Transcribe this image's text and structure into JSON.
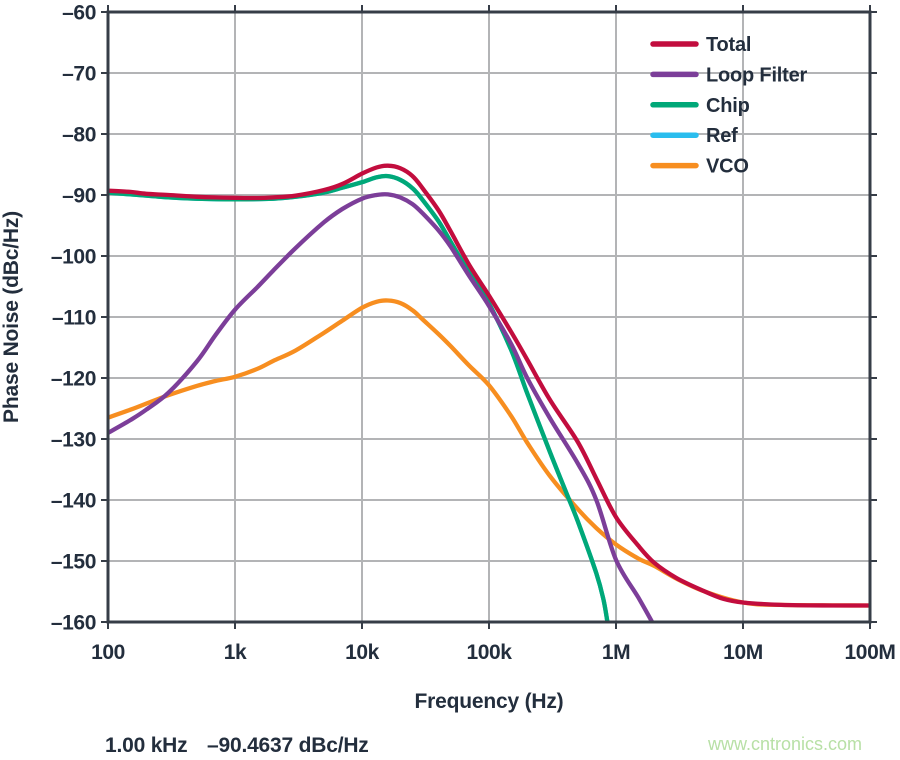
{
  "watermark": {
    "text": "www.cntronics.com",
    "color": "#b8e0a6"
  },
  "chart_data": {
    "type": "line",
    "title": "",
    "xlabel": "Frequency (Hz)",
    "ylabel": "Phase Noise (dBc/Hz)",
    "x_scale": "log",
    "xlim": [
      100,
      100000000
    ],
    "ylim": [
      -160,
      -60
    ],
    "grid": true,
    "x_ticks": [
      100,
      1000,
      10000,
      100000,
      1000000,
      10000000,
      100000000
    ],
    "x_tick_labels": [
      "100",
      "1k",
      "10k",
      "100k",
      "1M",
      "10M",
      "100M"
    ],
    "y_ticks": [
      -60,
      -70,
      -80,
      -90,
      -100,
      -110,
      -120,
      -130,
      -140,
      -150,
      -160
    ],
    "y_tick_labels": [
      "–60",
      "–70",
      "–80",
      "–90",
      "–100",
      "–110",
      "–120",
      "–130",
      "–140",
      "–150",
      "–160"
    ],
    "legend_position": "top-right",
    "marker_readout": {
      "frequency": "1.00 kHz",
      "value": "–90.4637 dBc/Hz"
    },
    "colors": {
      "grid": "#b3b4b6",
      "axis": "#363d47",
      "text": "#232e3d"
    },
    "series": [
      {
        "name": "Total",
        "color": "#c20d3e",
        "points": [
          [
            100,
            -89.3
          ],
          [
            150,
            -89.5
          ],
          [
            200,
            -89.8
          ],
          [
            300,
            -90.0
          ],
          [
            500,
            -90.3
          ],
          [
            700,
            -90.4
          ],
          [
            1000,
            -90.46
          ],
          [
            1500,
            -90.5
          ],
          [
            2000,
            -90.4
          ],
          [
            3000,
            -90.1
          ],
          [
            5000,
            -89.2
          ],
          [
            7000,
            -88.2
          ],
          [
            10000,
            -86.5
          ],
          [
            13000,
            -85.5
          ],
          [
            16000,
            -85.2
          ],
          [
            20000,
            -85.6
          ],
          [
            25000,
            -86.9
          ],
          [
            30000,
            -88.9
          ],
          [
            40000,
            -92.5
          ],
          [
            50000,
            -96.0
          ],
          [
            70000,
            -101.5
          ],
          [
            100000,
            -106.5
          ],
          [
            150000,
            -112.5
          ],
          [
            200000,
            -117.0
          ],
          [
            300000,
            -123.5
          ],
          [
            500000,
            -130.5
          ],
          [
            700000,
            -136.5
          ],
          [
            1000000,
            -142.8
          ],
          [
            1500000,
            -147.5
          ],
          [
            2000000,
            -150.3
          ],
          [
            3000000,
            -152.8
          ],
          [
            5000000,
            -155.0
          ],
          [
            7000000,
            -156.2
          ],
          [
            10000000,
            -156.8
          ],
          [
            20000000,
            -157.2
          ],
          [
            50000000,
            -157.3
          ],
          [
            100000000,
            -157.3
          ]
        ]
      },
      {
        "name": "Loop Filter",
        "color": "#7c3e99",
        "points": [
          [
            100,
            -129.0
          ],
          [
            150,
            -126.9
          ],
          [
            200,
            -125.2
          ],
          [
            300,
            -122.4
          ],
          [
            500,
            -117.3
          ],
          [
            700,
            -113.0
          ],
          [
            1000,
            -108.8
          ],
          [
            1500,
            -105.1
          ],
          [
            2000,
            -102.4
          ],
          [
            3000,
            -98.7
          ],
          [
            5000,
            -94.5
          ],
          [
            7000,
            -92.3
          ],
          [
            10000,
            -90.6
          ],
          [
            13000,
            -90.0
          ],
          [
            16000,
            -89.9
          ],
          [
            20000,
            -90.4
          ],
          [
            25000,
            -91.5
          ],
          [
            30000,
            -93.0
          ],
          [
            40000,
            -95.8
          ],
          [
            50000,
            -98.5
          ],
          [
            70000,
            -103.3
          ],
          [
            100000,
            -108.2
          ],
          [
            150000,
            -114.5
          ],
          [
            200000,
            -120.0
          ],
          [
            300000,
            -126.5
          ],
          [
            500000,
            -134.0
          ],
          [
            700000,
            -140.0
          ],
          [
            1000000,
            -149.8
          ],
          [
            1500000,
            -156.0
          ],
          [
            2000000,
            -160.6
          ]
        ]
      },
      {
        "name": "Chip",
        "color": "#00a878",
        "points": [
          [
            100,
            -89.6
          ],
          [
            200,
            -90.1
          ],
          [
            300,
            -90.4
          ],
          [
            500,
            -90.6
          ],
          [
            1000,
            -90.7
          ],
          [
            2000,
            -90.6
          ],
          [
            3000,
            -90.3
          ],
          [
            5000,
            -89.6
          ],
          [
            7000,
            -88.8
          ],
          [
            10000,
            -87.9
          ],
          [
            13000,
            -87.1
          ],
          [
            16000,
            -86.9
          ],
          [
            20000,
            -87.5
          ],
          [
            25000,
            -88.9
          ],
          [
            30000,
            -90.8
          ],
          [
            40000,
            -94.3
          ],
          [
            50000,
            -97.7
          ],
          [
            70000,
            -102.8
          ],
          [
            100000,
            -107.8
          ],
          [
            150000,
            -115.5
          ],
          [
            200000,
            -122.5
          ],
          [
            300000,
            -132.0
          ],
          [
            400000,
            -138.5
          ],
          [
            500000,
            -143.5
          ],
          [
            700000,
            -152.0
          ],
          [
            800000,
            -156.5
          ],
          [
            865000,
            -160.6
          ]
        ]
      },
      {
        "name": "Ref",
        "color": "#2abdee",
        "note": "not visually distinguishable in plot; lies hidden beneath the Chip curve",
        "points": [
          [
            100,
            -89.6
          ],
          [
            200,
            -90.1
          ],
          [
            300,
            -90.4
          ],
          [
            500,
            -90.6
          ],
          [
            1000,
            -90.7
          ],
          [
            2000,
            -90.6
          ],
          [
            3000,
            -90.3
          ],
          [
            5000,
            -89.6
          ],
          [
            7000,
            -88.8
          ],
          [
            10000,
            -87.9
          ],
          [
            13000,
            -87.1
          ],
          [
            16000,
            -86.9
          ],
          [
            20000,
            -87.5
          ],
          [
            25000,
            -88.9
          ],
          [
            30000,
            -90.8
          ],
          [
            40000,
            -94.3
          ],
          [
            50000,
            -97.7
          ],
          [
            70000,
            -102.8
          ],
          [
            100000,
            -107.8
          ],
          [
            150000,
            -115.5
          ],
          [
            200000,
            -122.5
          ],
          [
            300000,
            -132.0
          ],
          [
            400000,
            -138.5
          ],
          [
            500000,
            -143.5
          ],
          [
            700000,
            -152.0
          ],
          [
            800000,
            -156.5
          ],
          [
            865000,
            -160.6
          ]
        ]
      },
      {
        "name": "VCO",
        "color": "#f78e20",
        "points": [
          [
            100,
            -126.5
          ],
          [
            150,
            -125.2
          ],
          [
            200,
            -124.2
          ],
          [
            300,
            -122.8
          ],
          [
            500,
            -121.3
          ],
          [
            700,
            -120.5
          ],
          [
            1000,
            -119.8
          ],
          [
            1500,
            -118.5
          ],
          [
            2000,
            -117.2
          ],
          [
            3000,
            -115.5
          ],
          [
            5000,
            -112.6
          ],
          [
            7000,
            -110.6
          ],
          [
            10000,
            -108.5
          ],
          [
            13000,
            -107.5
          ],
          [
            16000,
            -107.3
          ],
          [
            20000,
            -107.7
          ],
          [
            25000,
            -108.9
          ],
          [
            30000,
            -110.4
          ],
          [
            40000,
            -112.8
          ],
          [
            50000,
            -114.8
          ],
          [
            70000,
            -118.0
          ],
          [
            100000,
            -121.2
          ],
          [
            150000,
            -126.3
          ],
          [
            200000,
            -130.6
          ],
          [
            300000,
            -136.0
          ],
          [
            500000,
            -141.5
          ],
          [
            700000,
            -144.6
          ],
          [
            1000000,
            -147.3
          ],
          [
            1500000,
            -149.6
          ],
          [
            2000000,
            -150.8
          ],
          [
            3000000,
            -152.9
          ],
          [
            5000000,
            -155.0
          ],
          [
            10000000,
            -156.8
          ],
          [
            20000000,
            -157.2
          ],
          [
            100000000,
            -157.3
          ]
        ]
      }
    ]
  }
}
